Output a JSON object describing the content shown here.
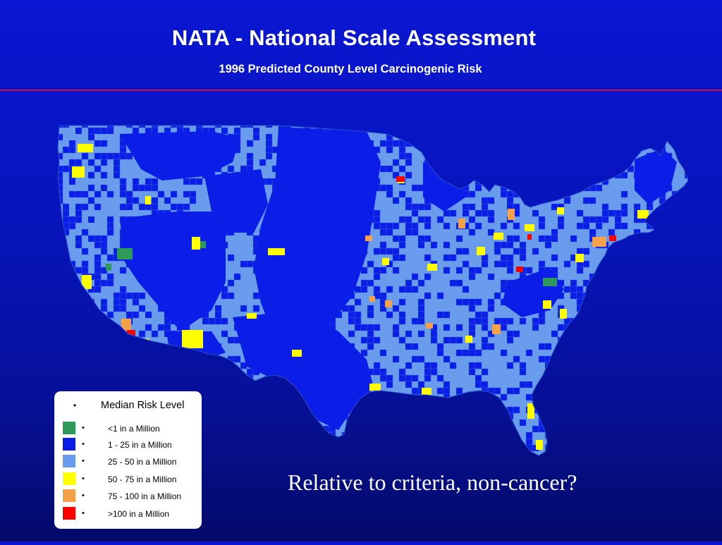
{
  "slide": {
    "title": "NATA - National Scale Assessment",
    "subtitle": "1996 Predicted County Level Carcinogenic Risk",
    "caption": "Relative to criteria, non-cancer?",
    "background_color": "#0714b8",
    "divider_color": "#c8143c"
  },
  "map": {
    "region": "Contiguous United States",
    "base_color": "#6a9cee",
    "county_line_color": "#3a66d8"
  },
  "legend": {
    "bullet": "•",
    "title": "Median Risk Level",
    "items": [
      {
        "label": "<1 in a Million",
        "color": "#2e9a5a"
      },
      {
        "label": "1 - 25 in a Million",
        "color": "#0a1ee8"
      },
      {
        "label": "25 - 50 in a Million",
        "color": "#6a9cee"
      },
      {
        "label": "50 - 75 in a Million",
        "color": "#ffff00"
      },
      {
        "label": "75 - 100 in a Million",
        "color": "#f5a04a"
      },
      {
        "label": ">100 in a Million",
        "color": "#ff0000"
      }
    ]
  }
}
